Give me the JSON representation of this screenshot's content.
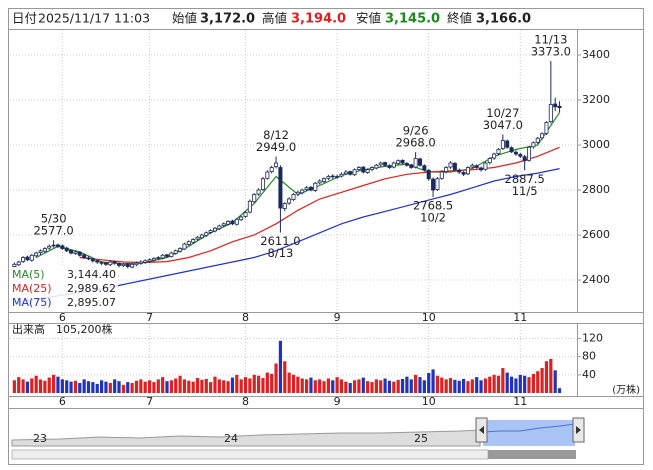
{
  "chart_data": {
    "type": "candlestick",
    "header": {
      "date_label": "日付",
      "datetime": "2025/11/17 11:03",
      "open_label": "始値",
      "open": "3,172.0",
      "high_label": "高値",
      "high": "3,194.0",
      "low_label": "安値",
      "low": "3,145.0",
      "close_label": "終値",
      "close": "3,166.0"
    },
    "xlim": [
      -1,
      129
    ],
    "xticks": [
      {
        "value": 11,
        "label": "6"
      },
      {
        "value": 31,
        "label": "7"
      },
      {
        "value": 53,
        "label": "8"
      },
      {
        "value": 74,
        "label": "9"
      },
      {
        "value": 95,
        "label": "10"
      },
      {
        "value": 116,
        "label": "11"
      }
    ],
    "ylim": [
      2258,
      3511
    ],
    "yticks": [
      2400,
      2600,
      2800,
      3000,
      3200,
      3400
    ],
    "grid": true,
    "up_color": "#ffffff",
    "down_color": "#1c2a5a",
    "candles": [
      [
        2460,
        2478,
        2452,
        2470
      ],
      [
        2468,
        2486,
        2462,
        2480
      ],
      [
        2482,
        2506,
        2476,
        2500
      ],
      [
        2502,
        2508,
        2484,
        2490
      ],
      [
        2488,
        2516,
        2482,
        2510
      ],
      [
        2508,
        2526,
        2500,
        2520
      ],
      [
        2522,
        2536,
        2512,
        2530
      ],
      [
        2528,
        2546,
        2520,
        2540
      ],
      [
        2542,
        2558,
        2534,
        2550
      ],
      [
        2552,
        2577,
        2544,
        2555
      ],
      [
        2556,
        2562,
        2542,
        2550
      ],
      [
        2552,
        2558,
        2534,
        2540
      ],
      [
        2542,
        2548,
        2524,
        2530
      ],
      [
        2532,
        2536,
        2514,
        2520
      ],
      [
        2518,
        2532,
        2512,
        2525
      ],
      [
        2524,
        2528,
        2504,
        2510
      ],
      [
        2512,
        2516,
        2494,
        2500
      ],
      [
        2498,
        2506,
        2488,
        2495
      ],
      [
        2494,
        2498,
        2478,
        2485
      ],
      [
        2486,
        2490,
        2472,
        2480
      ],
      [
        2478,
        2484,
        2466,
        2475
      ],
      [
        2476,
        2480,
        2462,
        2470
      ],
      [
        2468,
        2488,
        2462,
        2480
      ],
      [
        2482,
        2486,
        2468,
        2475
      ],
      [
        2474,
        2478,
        2456,
        2465
      ],
      [
        2464,
        2476,
        2458,
        2470
      ],
      [
        2472,
        2476,
        2452,
        2460
      ],
      [
        2458,
        2476,
        2452,
        2470
      ],
      [
        2468,
        2482,
        2462,
        2475
      ],
      [
        2474,
        2488,
        2468,
        2480
      ],
      [
        2478,
        2492,
        2472,
        2485
      ],
      [
        2484,
        2496,
        2476,
        2490
      ],
      [
        2488,
        2502,
        2482,
        2495
      ],
      [
        2496,
        2506,
        2488,
        2500
      ],
      [
        2498,
        2516,
        2492,
        2510
      ],
      [
        2512,
        2516,
        2498,
        2505
      ],
      [
        2504,
        2526,
        2500,
        2520
      ],
      [
        2518,
        2536,
        2512,
        2530
      ],
      [
        2528,
        2546,
        2522,
        2540
      ],
      [
        2538,
        2566,
        2534,
        2560
      ],
      [
        2558,
        2576,
        2552,
        2570
      ],
      [
        2568,
        2586,
        2562,
        2580
      ],
      [
        2582,
        2596,
        2574,
        2590
      ],
      [
        2588,
        2606,
        2582,
        2600
      ],
      [
        2598,
        2616,
        2592,
        2610
      ],
      [
        2612,
        2626,
        2604,
        2620
      ],
      [
        2618,
        2636,
        2612,
        2630
      ],
      [
        2628,
        2646,
        2622,
        2640
      ],
      [
        2642,
        2656,
        2634,
        2650
      ],
      [
        2648,
        2666,
        2642,
        2660
      ],
      [
        2662,
        2668,
        2644,
        2650
      ],
      [
        2648,
        2676,
        2642,
        2670
      ],
      [
        2668,
        2686,
        2662,
        2680
      ],
      [
        2682,
        2706,
        2676,
        2700
      ],
      [
        2702,
        2758,
        2696,
        2750
      ],
      [
        2748,
        2786,
        2740,
        2780
      ],
      [
        2782,
        2808,
        2774,
        2800
      ],
      [
        2802,
        2858,
        2796,
        2850
      ],
      [
        2852,
        2888,
        2846,
        2880
      ],
      [
        2882,
        2908,
        2874,
        2900
      ],
      [
        2904,
        2949,
        2896,
        2920
      ],
      [
        2900,
        2910,
        2611,
        2720
      ],
      [
        2718,
        2746,
        2706,
        2740
      ],
      [
        2742,
        2768,
        2734,
        2760
      ],
      [
        2758,
        2786,
        2752,
        2780
      ],
      [
        2782,
        2798,
        2772,
        2790
      ],
      [
        2788,
        2806,
        2780,
        2800
      ],
      [
        2802,
        2818,
        2794,
        2810
      ],
      [
        2812,
        2818,
        2794,
        2800
      ],
      [
        2798,
        2836,
        2792,
        2830
      ],
      [
        2832,
        2848,
        2824,
        2840
      ],
      [
        2838,
        2856,
        2830,
        2850
      ],
      [
        2852,
        2868,
        2844,
        2860
      ],
      [
        2862,
        2870,
        2850,
        2860
      ],
      [
        2858,
        2868,
        2850,
        2860
      ],
      [
        2862,
        2878,
        2856,
        2870
      ],
      [
        2872,
        2888,
        2866,
        2880
      ],
      [
        2882,
        2886,
        2864,
        2870
      ],
      [
        2868,
        2896,
        2862,
        2890
      ],
      [
        2892,
        2906,
        2884,
        2900
      ],
      [
        2902,
        2906,
        2874,
        2880
      ],
      [
        2878,
        2896,
        2872,
        2890
      ],
      [
        2892,
        2906,
        2884,
        2900
      ],
      [
        2898,
        2916,
        2892,
        2910
      ],
      [
        2912,
        2926,
        2904,
        2920
      ],
      [
        2922,
        2926,
        2904,
        2910
      ],
      [
        2908,
        2914,
        2894,
        2900
      ],
      [
        2902,
        2926,
        2896,
        2920
      ],
      [
        2918,
        2936,
        2912,
        2930
      ],
      [
        2932,
        2936,
        2914,
        2920
      ],
      [
        2918,
        2924,
        2904,
        2910
      ],
      [
        2912,
        2916,
        2894,
        2900
      ],
      [
        2902,
        2968,
        2896,
        2940
      ],
      [
        2938,
        2944,
        2904,
        2910
      ],
      [
        2908,
        2914,
        2882,
        2890
      ],
      [
        2888,
        2892,
        2842,
        2850
      ],
      [
        2848,
        2856,
        2768.5,
        2800
      ],
      [
        2802,
        2858,
        2796,
        2850
      ],
      [
        2852,
        2888,
        2846,
        2880
      ],
      [
        2882,
        2906,
        2874,
        2900
      ],
      [
        2902,
        2928,
        2894,
        2920
      ],
      [
        2918,
        2924,
        2884,
        2890
      ],
      [
        2888,
        2896,
        2872,
        2880
      ],
      [
        2878,
        2884,
        2862,
        2870
      ],
      [
        2872,
        2906,
        2866,
        2900
      ],
      [
        2902,
        2918,
        2894,
        2910
      ],
      [
        2908,
        2914,
        2894,
        2900
      ],
      [
        2898,
        2904,
        2882,
        2890
      ],
      [
        2892,
        2926,
        2886,
        2920
      ],
      [
        2922,
        2946,
        2914,
        2940
      ],
      [
        2942,
        2966,
        2934,
        2960
      ],
      [
        2962,
        2986,
        2954,
        2980
      ],
      [
        2984,
        3047,
        2978,
        3020
      ],
      [
        3018,
        3024,
        2984,
        2990
      ],
      [
        2988,
        2994,
        2964,
        2970
      ],
      [
        2968,
        2976,
        2952,
        2960
      ],
      [
        2958,
        2966,
        2942,
        2950
      ],
      [
        2948,
        2956,
        2887.5,
        2930
      ],
      [
        2932,
        2996,
        2926,
        2990
      ],
      [
        2992,
        3016,
        2984,
        3010
      ],
      [
        3012,
        3036,
        3004,
        3030
      ],
      [
        3032,
        3056,
        3024,
        3050
      ],
      [
        3052,
        3106,
        3044,
        3100
      ],
      [
        3104,
        3373,
        3096,
        3180
      ],
      [
        3182,
        3210,
        3150,
        3170
      ],
      [
        3172,
        3194,
        3145,
        3166
      ]
    ],
    "annotations": [
      {
        "date": "5/30",
        "value": 2577.0,
        "label": "2577.0"
      },
      {
        "date": "8/12",
        "value": 2949.0,
        "label": "2949.0"
      },
      {
        "date": "8/13",
        "value": 2611.0,
        "label": "2611.0"
      },
      {
        "date": "9/26",
        "value": 2968.0,
        "label": "2968.0"
      },
      {
        "date": "10/2",
        "value": 2768.5,
        "label": "2768.5"
      },
      {
        "date": "10/27",
        "value": 3047.0,
        "label": "3047.0"
      },
      {
        "date": "11/5",
        "value": 2887.5,
        "label": "2887.5"
      },
      {
        "date": "11/13",
        "value": 3373.0,
        "label": "3373.0"
      }
    ],
    "moving_averages": {
      "x": [
        0,
        5,
        10,
        15,
        20,
        25,
        30,
        35,
        40,
        45,
        50,
        55,
        60,
        65,
        70,
        75,
        80,
        85,
        90,
        95,
        100,
        105,
        110,
        115,
        120,
        125
      ],
      "series": [
        {
          "name": "MA(5)",
          "color": "#2a8a2a",
          "value_label": "3,144.40",
          "last_value": 3144.4,
          "values": [
            null,
            2500,
            2550,
            2525,
            2480,
            2472,
            2478,
            2500,
            2550,
            2610,
            2655,
            2740,
            2860,
            2780,
            2820,
            2865,
            2890,
            2905,
            2915,
            2880,
            2880,
            2895,
            2950,
            2980,
            3000,
            3144.4
          ]
        },
        {
          "name": "MA(25)",
          "color": "#e02020",
          "value_label": "2,989.62",
          "last_value": 2989.62,
          "values": [
            null,
            null,
            null,
            2500,
            2490,
            2480,
            2478,
            2482,
            2500,
            2530,
            2570,
            2600,
            2650,
            2710,
            2760,
            2790,
            2820,
            2850,
            2870,
            2880,
            2885,
            2890,
            2900,
            2920,
            2950,
            2989.62
          ]
        },
        {
          "name": "MA(75)",
          "color": "#2233cc",
          "value_label": "2,895.07",
          "last_value": 2895.07,
          "values": [
            2300,
            2315,
            2330,
            2345,
            2360,
            2380,
            2400,
            2420,
            2440,
            2460,
            2480,
            2500,
            2530,
            2570,
            2610,
            2650,
            2680,
            2705,
            2730,
            2755,
            2780,
            2810,
            2840,
            2860,
            2875,
            2895.07
          ]
        }
      ]
    },
    "volume": {
      "title": "出来高",
      "current": "105,200株",
      "unit": "(万株)",
      "ylim": [
        0,
        130
      ],
      "yticks": [
        40,
        80,
        120
      ],
      "up_color": "#e02020",
      "down_color": "#2233bb",
      "values": [
        28,
        35,
        30,
        25,
        32,
        38,
        30,
        27,
        34,
        40,
        36,
        30,
        28,
        25,
        27,
        22,
        30,
        26,
        24,
        20,
        28,
        25,
        22,
        30,
        26,
        18,
        24,
        22,
        27,
        30,
        25,
        28,
        24,
        30,
        35,
        26,
        28,
        32,
        38,
        30,
        27,
        25,
        33,
        29,
        31,
        24,
        36,
        30,
        28,
        26,
        34,
        40,
        30,
        35,
        32,
        40,
        38,
        33,
        45,
        42,
        65,
        115,
        70,
        45,
        40,
        36,
        32,
        30,
        34,
        28,
        30,
        26,
        32,
        28,
        35,
        30,
        25,
        22,
        28,
        30,
        34,
        26,
        24,
        30,
        28,
        32,
        27,
        25,
        29,
        31,
        36,
        30,
        40,
        35,
        28,
        44,
        52,
        38,
        34,
        30,
        33,
        29,
        27,
        31,
        26,
        30,
        35,
        28,
        32,
        36,
        40,
        38,
        55,
        45,
        36,
        32,
        40,
        38,
        35,
        42,
        48,
        55,
        70,
        75,
        50,
        10.52
      ]
    },
    "navigator": {
      "labels": [
        "23",
        "24",
        "25"
      ]
    }
  }
}
